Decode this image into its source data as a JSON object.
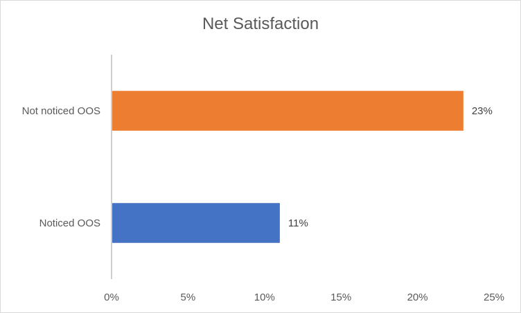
{
  "chart_data": {
    "type": "bar",
    "orientation": "horizontal",
    "title": "Net Satisfaction",
    "categories": [
      "Not noticed OOS",
      "Noticed OOS"
    ],
    "series": [
      {
        "values": [
          23,
          11
        ],
        "colors": [
          "#ED7D31",
          "#4472C4"
        ]
      }
    ],
    "data_labels": [
      "23%",
      "11%"
    ],
    "xlim": [
      0,
      25
    ],
    "x_ticks": [
      0,
      5,
      10,
      15,
      20,
      25
    ],
    "x_tick_labels": [
      "0%",
      "5%",
      "10%",
      "15%",
      "20%",
      "25%"
    ],
    "xlabel": "",
    "ylabel": "",
    "grid": false,
    "legend": "none"
  }
}
